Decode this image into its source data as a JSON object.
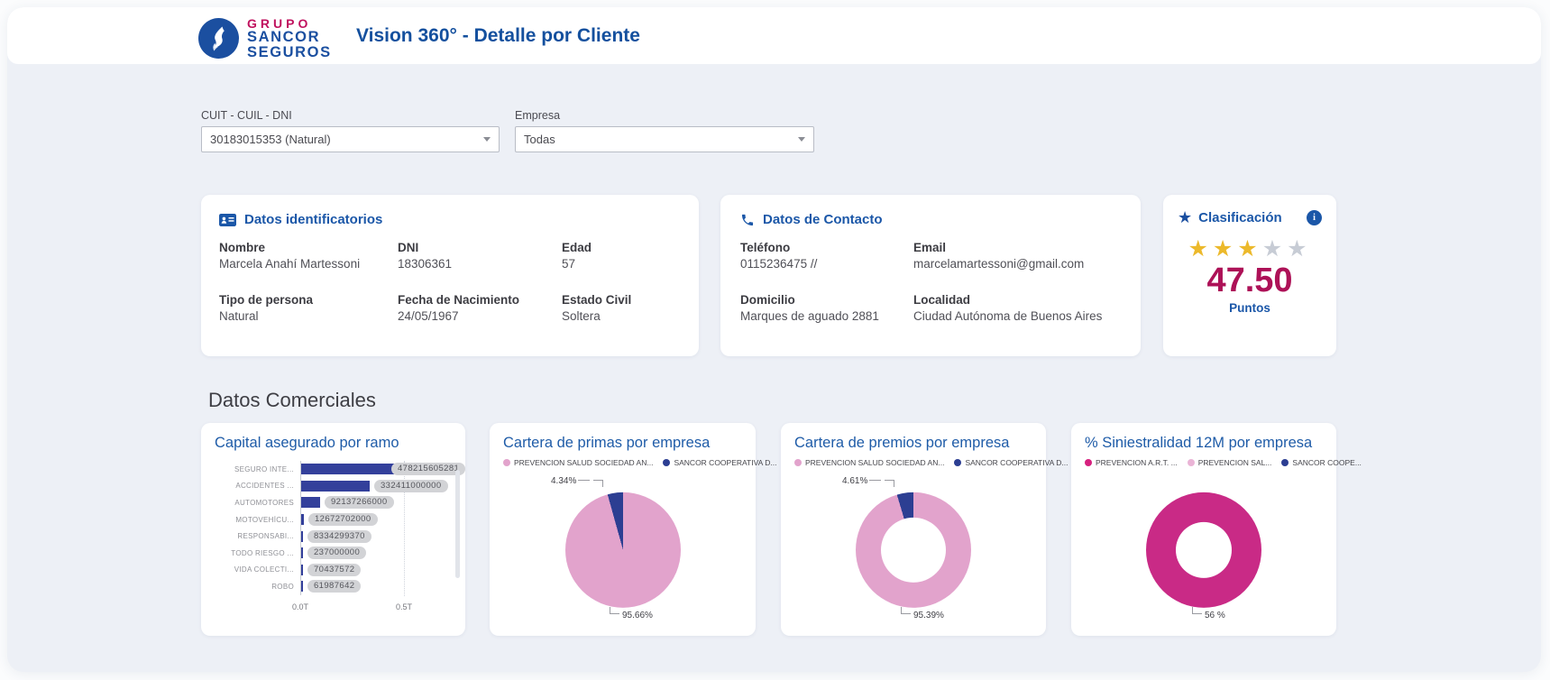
{
  "header": {
    "brand_line1": "GRUPO",
    "brand_line2": "SANCOR",
    "brand_line3": "SEGUROS",
    "title": "Vision 360° - Detalle por Cliente"
  },
  "filters": {
    "cuit": {
      "label": "CUIT - CUIL - DNI",
      "value": "30183015353 (Natural)"
    },
    "empresa": {
      "label": "Empresa",
      "value": "Todas"
    }
  },
  "cards": {
    "identification": {
      "title": "Datos identificatorios",
      "fields": [
        {
          "label": "Nombre",
          "value": "Marcela Anahí Martessoni"
        },
        {
          "label": "DNI",
          "value": "18306361"
        },
        {
          "label": "Edad",
          "value": "57"
        },
        {
          "label": "Tipo de persona",
          "value": "Natural"
        },
        {
          "label": "Fecha de Nacimiento",
          "value": "24/05/1967"
        },
        {
          "label": "Estado Civil",
          "value": "Soltera"
        }
      ]
    },
    "contact": {
      "title": "Datos de Contacto",
      "fields": [
        {
          "label": "Teléfono",
          "value": "0115236475 //"
        },
        {
          "label": "Email",
          "value": "marcelamartessoni@gmail.com"
        },
        {
          "label": "Domicilio",
          "value": "Marques de aguado 2881"
        },
        {
          "label": "Localidad",
          "value": "Ciudad Autónoma de Buenos Aires"
        }
      ]
    },
    "classification": {
      "title": "Clasificación",
      "info_icon": "info-icon",
      "stars_filled": 3,
      "stars_total": 5,
      "score": "47.50",
      "score_label": "Puntos",
      "star_filled_color": "#ecb92b",
      "star_empty_color": "#c7ccd5"
    }
  },
  "commercial_heading": "Datos Comerciales",
  "colors": {
    "accent_blue": "#1b57a8",
    "brand_magenta": "#c0125e",
    "content_background": "#edf0f6",
    "indigo_series": "#2c3e92",
    "pink_series": "#e2a3cc",
    "magenta_series": "#c92a86",
    "score_crimson": "#ad1157"
  },
  "icons": {
    "identification": "id-card-icon",
    "contact": "phone-icon",
    "classification": "star-icon",
    "dropdowns": "chevron-down-icon",
    "logo": "flame-icon"
  },
  "chart_data": [
    {
      "type": "bar",
      "title": "Capital asegurado por ramo",
      "orientation": "horizontal",
      "categories": [
        "SEGURO INTE...",
        "ACCIDENTES ...",
        "AUTOMOTORES",
        "MOTOVEHÍCU...",
        "RESPONSABI...",
        "TODO RIESGO ...",
        "VIDA COLECTI...",
        "ROBO"
      ],
      "values": [
        478215605281,
        332411000000,
        92137266000,
        12672702000,
        8334299370,
        237000000,
        70437572,
        61987642
      ],
      "value_labels": [
        "478215605281",
        "332411000000",
        "92137266000",
        "12672702000",
        "8334299370",
        "237000000",
        "70437572",
        "61987642"
      ],
      "bar_color": "#33409b",
      "xticks": [
        "0.0T",
        "0.5T"
      ],
      "xtick_value": 500000000000,
      "grid": "dotted vertical at 0.5T",
      "has_scrollbar": true
    },
    {
      "type": "pie",
      "title": "Cartera de primas por empresa",
      "legend": [
        {
          "label": "PREVENCION SALUD SOCIEDAD AN...",
          "color": "#e2a3cc"
        },
        {
          "label": "SANCOR COOPERATIVA D...",
          "color": "#2c3e92"
        }
      ],
      "slices": [
        {
          "name": "PREVENCION SALUD SOCIEDAD AN...",
          "value": 95.66,
          "label": "95.66%",
          "color": "#e2a3cc"
        },
        {
          "name": "SANCOR COOPERATIVA D...",
          "value": 4.34,
          "label": "4.34%",
          "color": "#2c3e92"
        }
      ],
      "legend_position": "top"
    },
    {
      "type": "donut",
      "title": "Cartera de premios por empresa",
      "legend": [
        {
          "label": "PREVENCION SALUD SOCIEDAD AN...",
          "color": "#e2a3cc"
        },
        {
          "label": "SANCOR COOPERATIVA D...",
          "color": "#2c3e92"
        }
      ],
      "slices": [
        {
          "name": "PREVENCION SALUD SOCIEDAD AN...",
          "value": 95.39,
          "label": "95.39%",
          "color": "#e2a3cc"
        },
        {
          "name": "SANCOR COOPERATIVA D...",
          "value": 4.61,
          "label": "4.61%",
          "color": "#2c3e92"
        }
      ],
      "legend_position": "top"
    },
    {
      "type": "donut",
      "title": "% Siniestralidad 12M por empresa",
      "legend": [
        {
          "label": "PREVENCION  A.R.T. ...",
          "color": "#d6217e"
        },
        {
          "label": "PREVENCION SAL...",
          "color": "#eab4d6"
        },
        {
          "label": "SANCOR COOPE...",
          "color": "#2c3e92"
        }
      ],
      "slices": [
        {
          "name": "PREVENCION  A.R.T. ...",
          "value": 100,
          "label": "56 %",
          "color": "#c92a86"
        }
      ],
      "legend_position": "top"
    }
  ]
}
